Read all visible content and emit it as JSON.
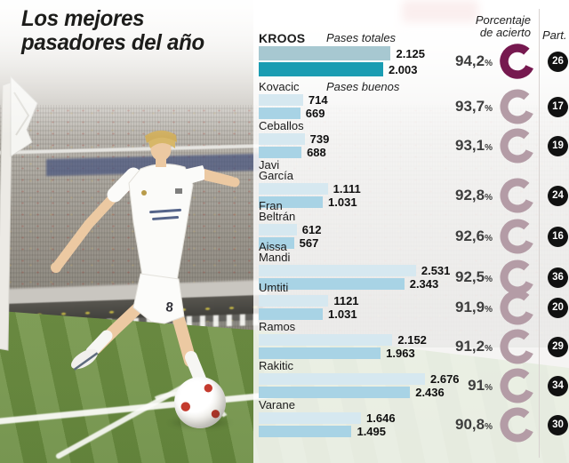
{
  "title": {
    "line1": "Los mejores",
    "line2": "pasadores del año"
  },
  "headers": {
    "accuracy_line1": "Porcentaje",
    "accuracy_line2": "de acierto",
    "participations": "Part.",
    "percent_sign": "%"
  },
  "axis_labels": {
    "total": "Pases totales",
    "good": "Pases buenos"
  },
  "colors": {
    "bar_total": "#d6e8f0",
    "bar_good": "#a8d3e5",
    "highlight_bar_total": "#a7c8d1",
    "highlight_bar_good": "#1a9cb2",
    "donut": "#b49ca6",
    "highlight_donut": "#76194f",
    "badge_bg": "#111111"
  },
  "chart_data": {
    "type": "bar",
    "title": "Los mejores pasadores del año",
    "series_labels": [
      "Pases totales",
      "Pases buenos"
    ],
    "value_axis_max": 2676,
    "players": [
      {
        "name": "KROOS",
        "name_lines": [
          "KROOS"
        ],
        "total_label": "2.125",
        "total_value": 2125,
        "good_label": "2.003",
        "good_value": 2003,
        "accuracy_label": "94,2",
        "accuracy_value": 94.2,
        "participations": "26",
        "highlight": true
      },
      {
        "name": "Kovacic",
        "name_lines": [
          "Kovacic"
        ],
        "total_label": "714",
        "total_value": 714,
        "good_label": "669",
        "good_value": 669,
        "accuracy_label": "93,7",
        "accuracy_value": 93.7,
        "participations": "17",
        "highlight": false
      },
      {
        "name": "Ceballos",
        "name_lines": [
          "Ceballos"
        ],
        "total_label": "739",
        "total_value": 739,
        "good_label": "688",
        "good_value": 688,
        "accuracy_label": "93,1",
        "accuracy_value": 93.1,
        "participations": "19",
        "highlight": false
      },
      {
        "name": "Javi García",
        "name_lines": [
          "Javi",
          "García"
        ],
        "total_label": "1.111",
        "total_value": 1111,
        "good_label": "1.031",
        "good_value": 1031,
        "accuracy_label": "92,8",
        "accuracy_value": 92.8,
        "participations": "24",
        "highlight": false
      },
      {
        "name": "Fran Beltrán",
        "name_lines": [
          "Fran",
          "Beltrán"
        ],
        "total_label": "612",
        "total_value": 612,
        "good_label": "567",
        "good_value": 567,
        "accuracy_label": "92,6",
        "accuracy_value": 92.6,
        "participations": "16",
        "highlight": false
      },
      {
        "name": "Aissa Mandi",
        "name_lines": [
          "Aissa",
          "Mandi"
        ],
        "total_label": "2.531",
        "total_value": 2531,
        "good_label": "2.343",
        "good_value": 2343,
        "accuracy_label": "92,5",
        "accuracy_value": 92.5,
        "participations": "36",
        "highlight": false
      },
      {
        "name": "Umtiti",
        "name_lines": [
          "Umtiti"
        ],
        "total_label": "1121",
        "total_value": 1121,
        "good_label": "1.031",
        "good_value": 1031,
        "accuracy_label": "91,9",
        "accuracy_value": 91.9,
        "participations": "20",
        "highlight": false
      },
      {
        "name": "Ramos",
        "name_lines": [
          "Ramos"
        ],
        "total_label": "2.152",
        "total_value": 2152,
        "good_label": "1.963",
        "good_value": 1963,
        "accuracy_label": "91,2",
        "accuracy_value": 91.2,
        "participations": "29",
        "highlight": false
      },
      {
        "name": "Rakitic",
        "name_lines": [
          "Rakitic"
        ],
        "total_label": "2.676",
        "total_value": 2676,
        "good_label": "2.436",
        "good_value": 2436,
        "accuracy_label": "91",
        "accuracy_value": 91.0,
        "participations": "34",
        "highlight": false
      },
      {
        "name": "Varane",
        "name_lines": [
          "Varane"
        ],
        "total_label": "1.646",
        "total_value": 1646,
        "good_label": "1.495",
        "good_value": 1495,
        "accuracy_label": "90,8",
        "accuracy_value": 90.8,
        "participations": "30",
        "highlight": false
      }
    ]
  }
}
